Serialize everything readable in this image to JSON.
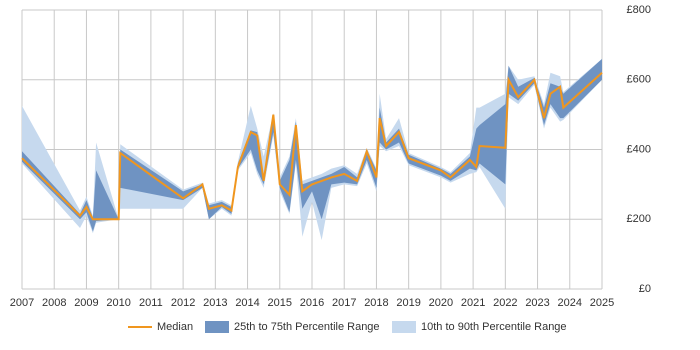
{
  "chart_data": {
    "type": "band-line",
    "x": [
      2007.0,
      2008.8,
      2009.0,
      2009.2,
      2009.3,
      2010.0,
      2010.05,
      2012.0,
      2012.6,
      2012.8,
      2013.2,
      2013.5,
      2013.7,
      2014.1,
      2014.3,
      2014.5,
      2014.8,
      2015.0,
      2015.3,
      2015.5,
      2015.7,
      2016.0,
      2016.3,
      2016.6,
      2017.0,
      2017.4,
      2017.7,
      2018.0,
      2018.1,
      2018.3,
      2018.7,
      2019.0,
      2020.0,
      2020.3,
      2020.9,
      2021.1,
      2021.2,
      2022.0,
      2022.1,
      2022.4,
      2022.9,
      2023.2,
      2023.4,
      2023.7,
      2023.8,
      2025.0
    ],
    "series": [
      {
        "name": "10th to 90th Percentile Range",
        "color": "#c6d9ee",
        "low": [
          360,
          175,
          210,
          160,
          190,
          200,
          230,
          230,
          290,
          200,
          230,
          210,
          340,
          390,
          330,
          290,
          440,
          280,
          215,
          360,
          150,
          250,
          140,
          290,
          300,
          295,
          360,
          280,
          410,
          395,
          410,
          355,
          320,
          305,
          330,
          335,
          350,
          230,
          550,
          530,
          585,
          460,
          520,
          480,
          485,
          600
        ],
        "high": [
          525,
          225,
          265,
          210,
          420,
          200,
          415,
          285,
          305,
          245,
          255,
          240,
          365,
          525,
          460,
          380,
          505,
          320,
          380,
          490,
          310,
          320,
          330,
          345,
          355,
          330,
          405,
          345,
          560,
          430,
          490,
          390,
          350,
          335,
          390,
          520,
          520,
          560,
          640,
          600,
          610,
          530,
          620,
          610,
          565,
          660
        ]
      },
      {
        "name": "25th to 75th Percentile Range",
        "color": "#6f93c2",
        "low": [
          365,
          200,
          220,
          165,
          195,
          200,
          290,
          255,
          290,
          200,
          235,
          215,
          345,
          400,
          340,
          300,
          450,
          290,
          220,
          370,
          230,
          280,
          200,
          300,
          305,
          300,
          370,
          290,
          420,
          400,
          420,
          360,
          325,
          310,
          345,
          340,
          360,
          300,
          560,
          540,
          590,
          470,
          530,
          490,
          490,
          600
        ],
        "high": [
          395,
          215,
          255,
          205,
          340,
          200,
          400,
          280,
          300,
          240,
          250,
          235,
          360,
          455,
          450,
          320,
          500,
          310,
          370,
          480,
          300,
          310,
          320,
          330,
          350,
          320,
          400,
          340,
          520,
          420,
          460,
          385,
          345,
          330,
          380,
          460,
          470,
          530,
          640,
          580,
          605,
          520,
          590,
          580,
          560,
          660
        ]
      },
      {
        "name": "Median",
        "color": "#f0961e",
        "values": [
          375,
          210,
          235,
          200,
          200,
          200,
          390,
          260,
          300,
          230,
          240,
          225,
          350,
          450,
          440,
          310,
          500,
          300,
          270,
          470,
          280,
          300,
          310,
          320,
          330,
          310,
          395,
          320,
          490,
          410,
          450,
          375,
          340,
          320,
          370,
          350,
          410,
          405,
          600,
          550,
          600,
          490,
          560,
          580,
          520,
          620
        ]
      }
    ],
    "xlim": [
      2007,
      2025
    ],
    "xticks": [
      2007,
      2008,
      2009,
      2010,
      2011,
      2012,
      2013,
      2014,
      2015,
      2016,
      2017,
      2018,
      2019,
      2020,
      2021,
      2022,
      2023,
      2024,
      2025
    ],
    "ylim": [
      0,
      800
    ],
    "yticks": [
      {
        "value": 0,
        "label": "£0"
      },
      {
        "value": 200,
        "label": "£200"
      },
      {
        "value": 400,
        "label": "£400"
      },
      {
        "value": 600,
        "label": "£600"
      },
      {
        "value": 800,
        "label": "£800"
      }
    ],
    "grid": true
  }
}
